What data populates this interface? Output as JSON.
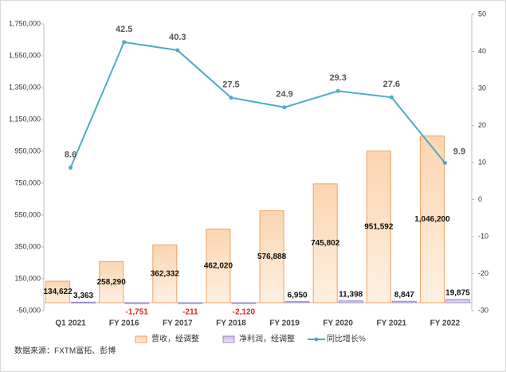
{
  "chart_data": {
    "type": "bar_line",
    "categories": [
      "Q1 2021",
      "FY 2016",
      "FY 2017",
      "FY 2018",
      "FY 2019",
      "FY 2020",
      "FY 2021",
      "FY 2022"
    ],
    "series": [
      {
        "name": "营收，经调整",
        "type": "bar",
        "color": "#f9b57e",
        "values": [
          134622,
          258290,
          362332,
          462020,
          576888,
          745802,
          951592,
          1046200
        ],
        "value_labels": [
          "134,622",
          "258,290",
          "362,332",
          "462,020",
          "576,888",
          "745,802",
          "951,592",
          "1,046,200"
        ]
      },
      {
        "name": "净利润，经调整",
        "type": "bar",
        "color": "#c9b8e8",
        "values": [
          3363,
          -1751,
          -211,
          -2120,
          6950,
          11398,
          8847,
          19875
        ],
        "value_labels": [
          "3,363",
          "-1,751",
          "-211",
          "-2,120",
          "6,950",
          "11,398",
          "8,847",
          "19,875"
        ]
      },
      {
        "name": "同比增长%",
        "type": "line",
        "axis": "y2",
        "color": "#4bacc6",
        "values": [
          8.6,
          42.5,
          40.3,
          27.5,
          24.9,
          29.3,
          27.6,
          9.9
        ]
      }
    ],
    "ylim": [
      -50000,
      1750000
    ],
    "yticks": [
      {
        "value": -50000,
        "label": "-50,000"
      },
      {
        "value": 150000,
        "label": "150,000"
      },
      {
        "value": 350000,
        "label": "350,000"
      },
      {
        "value": 550000,
        "label": "550,000"
      },
      {
        "value": 750000,
        "label": "750,000"
      },
      {
        "value": 950000,
        "label": "950,000"
      },
      {
        "value": 1150000,
        "label": "1,150,000"
      },
      {
        "value": 1350000,
        "label": "1,350,000"
      },
      {
        "value": 1550000,
        "label": "1,550,000"
      },
      {
        "value": 1750000,
        "label": "1,750,000"
      }
    ],
    "y2lim": [
      -30,
      50
    ],
    "y2ticks": [
      -30,
      -20,
      -10,
      0,
      10,
      20,
      30,
      40,
      50
    ],
    "negative_label_color": "#e02020",
    "source": "数据来源：FXTM富拓、彭博"
  }
}
